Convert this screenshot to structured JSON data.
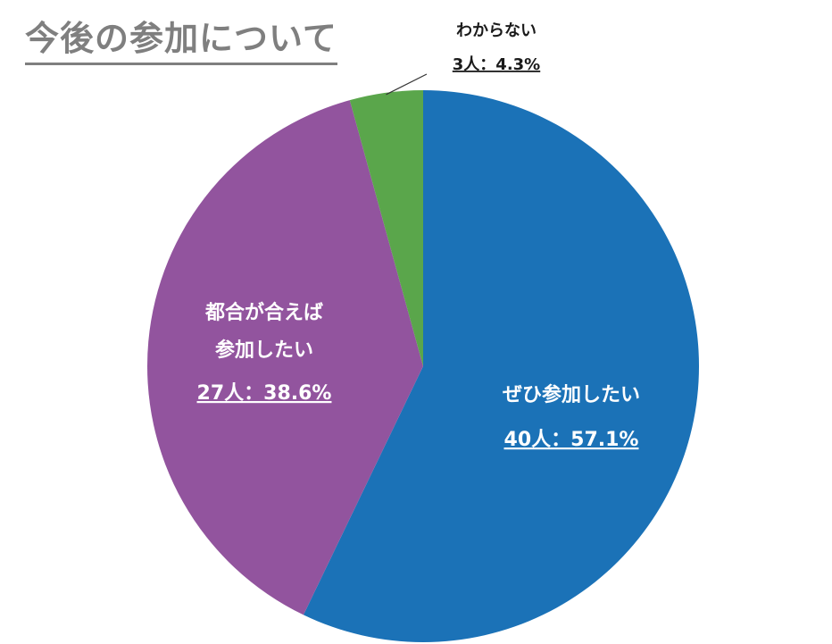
{
  "title": "今後の参加について",
  "chart_data": {
    "type": "pie",
    "title": "今後の参加について",
    "unit": "人",
    "slices": [
      {
        "name": "ぜひ参加したい",
        "count_label": "40人：57.1%",
        "value": 40,
        "percent": 57.1,
        "color": "#1b72b7"
      },
      {
        "name": "都合が合えば参加したい",
        "name_lines": [
          "都合が合えば",
          "参加したい"
        ],
        "count_label": "27人：38.6%",
        "value": 27,
        "percent": 38.6,
        "color": "#92549e"
      },
      {
        "name": "わからない",
        "count_label": "3人：4.3%",
        "value": 3,
        "percent": 4.3,
        "color": "#5aa64b"
      }
    ],
    "start_angle_deg": 0,
    "direction": "clockwise",
    "legend": "none"
  }
}
